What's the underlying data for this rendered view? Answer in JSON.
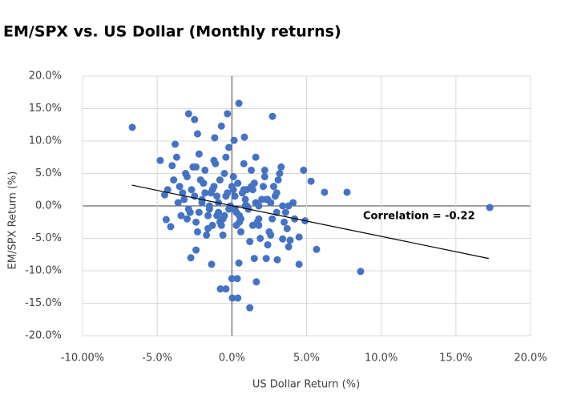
{
  "chart_data": {
    "type": "scatter",
    "title": "EM/SPX vs. US Dollar (Monthly returns)",
    "x_label": "US Dollar Return (%)",
    "y_label": "EM/SPX Return (%)",
    "annotation": "Correlation = -0.22",
    "color": "#4472c4",
    "grid": true,
    "xlim": [
      -10,
      20
    ],
    "ylim": [
      -20,
      20
    ],
    "xticks": [
      {
        "value": -10,
        "label": "-10.00%"
      },
      {
        "value": -5,
        "label": "-5.0%"
      },
      {
        "value": 0,
        "label": "0.0%"
      },
      {
        "value": 5,
        "label": "5.0%"
      },
      {
        "value": 10,
        "label": "10.0%"
      },
      {
        "value": 15,
        "label": "15.0%"
      },
      {
        "value": 20,
        "label": "20.0%"
      }
    ],
    "yticks": [
      {
        "value": 20,
        "label": "20.0%"
      },
      {
        "value": 15,
        "label": "15.0%"
      },
      {
        "value": 10,
        "label": "10.0%"
      },
      {
        "value": 5,
        "label": "5.0%"
      },
      {
        "value": 0,
        "label": "0.0%"
      },
      {
        "value": -5,
        "label": "-5.0%"
      },
      {
        "value": -10,
        "label": "-10.0%"
      },
      {
        "value": -15,
        "label": "-15.0%"
      },
      {
        "value": -20,
        "label": "-20.0%"
      }
    ],
    "trendline": {
      "x": [
        -6.7,
        17.2
      ],
      "y": [
        3.2,
        -8.1
      ],
      "color": "#000000"
    },
    "x": [
      -6.67,
      17.27,
      8.62,
      7.71,
      5.67,
      0.47,
      2.72,
      -2.9,
      -2.5,
      -0.3,
      1.2,
      0.03,
      0.4,
      -0.77,
      -0.4,
      0,
      0.36,
      1.64,
      -2.75,
      -1.36,
      -2.4,
      -4.8,
      -3.8,
      -2.3,
      -0.7,
      0.84,
      -1.15,
      0.15,
      4.8,
      5.3,
      6.2,
      4.9,
      4.5,
      4.5,
      3.04,
      2.3,
      1.5,
      0.47,
      3.8,
      3.9,
      3.4,
      -4.1,
      -4.4,
      -4.5,
      -4.3,
      -4.0,
      -3.7,
      -3.5,
      -3.2,
      -3.0,
      -2.8,
      -2.6,
      -2.4,
      -2.2,
      -2.0,
      -1.8,
      -1.6,
      -1.4,
      -1.2,
      -1.0,
      -0.8,
      -0.6,
      -0.4,
      -0.2,
      0.2,
      0.4,
      0.6,
      0.8,
      1.0,
      1.2,
      1.4,
      1.6,
      1.8,
      2.0,
      2.2,
      2.4,
      2.6,
      2.8,
      3.0,
      3.2,
      3.5,
      3.8,
      -3.4,
      -3.1,
      -2.7,
      -2.3,
      -1.9,
      -1.5,
      -1.1,
      -0.7,
      -0.3,
      0.1,
      0.5,
      0.9,
      1.3,
      1.7,
      2.1,
      2.5,
      2.9,
      3.3,
      3.7,
      4.1,
      -3.6,
      -3.0,
      -2.5,
      -2.1,
      -1.7,
      -1.3,
      -0.9,
      -0.5,
      -0.1,
      0.3,
      0.7,
      1.1,
      1.5,
      1.9,
      2.3,
      2.7,
      3.1,
      3.6,
      -3.9,
      -3.3,
      -2.9,
      -2.4,
      -2.0,
      -1.6,
      -1.2,
      -0.8,
      -0.4,
      0.0,
      0.6,
      1.0,
      1.4,
      1.8,
      2.2,
      2.6,
      3.0,
      3.4,
      4.2,
      -2.2,
      -1.8,
      -1.3,
      -0.9,
      -0.5,
      0.2,
      0.5,
      0.9,
      1.3,
      1.8,
      2.4,
      -1.5,
      -1.0,
      -0.2,
      0.3,
      0.8,
      1.6,
      -0.6,
      0.1,
      1.1
    ],
    "values": [
      12.1,
      -0.25,
      -10.1,
      2.1,
      -6.7,
      15.8,
      13.8,
      14.2,
      13.3,
      14.2,
      -15.7,
      -14.2,
      -14.2,
      -12.8,
      -12.8,
      -11.2,
      -11.2,
      -11.7,
      -8.0,
      -9.0,
      -6.8,
      7.0,
      9.5,
      11.1,
      12.3,
      10.6,
      10.5,
      10.1,
      5.5,
      3.8,
      2.1,
      -2.3,
      -4.8,
      -9.0,
      -8.3,
      -8.1,
      -8.1,
      -8.8,
      -6.3,
      -5.3,
      -5.1,
      -3.2,
      -2.1,
      1.7,
      2.5,
      6.2,
      7.5,
      3.0,
      1.0,
      4.5,
      -1.0,
      6.0,
      -2.5,
      8.0,
      0.5,
      5.5,
      -3.5,
      2.0,
      7.0,
      -1.5,
      4.0,
      -4.5,
      1.5,
      9.0,
      -0.5,
      3.5,
      -2.0,
      6.5,
      0.0,
      -5.5,
      2.5,
      7.5,
      -3.0,
      1.0,
      4.5,
      -6.0,
      0.5,
      3.0,
      -1.0,
      5.0,
      -2.5,
      0.0,
      -1.5,
      5.0,
      2.5,
      -4.0,
      3.5,
      -0.5,
      6.5,
      -3.0,
      2.0,
      4.5,
      -1.5,
      1.0,
      5.5,
      -2.5,
      3.0,
      -4.0,
      1.5,
      6.0,
      -3.5,
      0.5,
      0.5,
      -2.0,
      1.5,
      4.0,
      -4.5,
      2.5,
      -1.0,
      5.0,
      0.0,
      -3.0,
      2.0,
      -0.5,
      3.5,
      -5.0,
      1.0,
      -2.0,
      4.0,
      -1.0,
      4.0,
      2.0,
      -0.5,
      6.0,
      1.0,
      -1.5,
      3.0,
      -2.5,
      7.5,
      3.0,
      -4.0,
      2.5,
      -3.0,
      0.0,
      5.5,
      -4.5,
      2.0,
      0.0,
      -2.0,
      -1.0,
      2.0,
      -3.0,
      0.5,
      -1.5,
      1.5,
      -2.5,
      0.0,
      3.0,
      -2.0,
      1.0,
      0.0,
      1.5,
      -0.5,
      -1.0,
      2.5,
      0.5,
      -2.0,
      2.5,
      -0.5
    ]
  }
}
